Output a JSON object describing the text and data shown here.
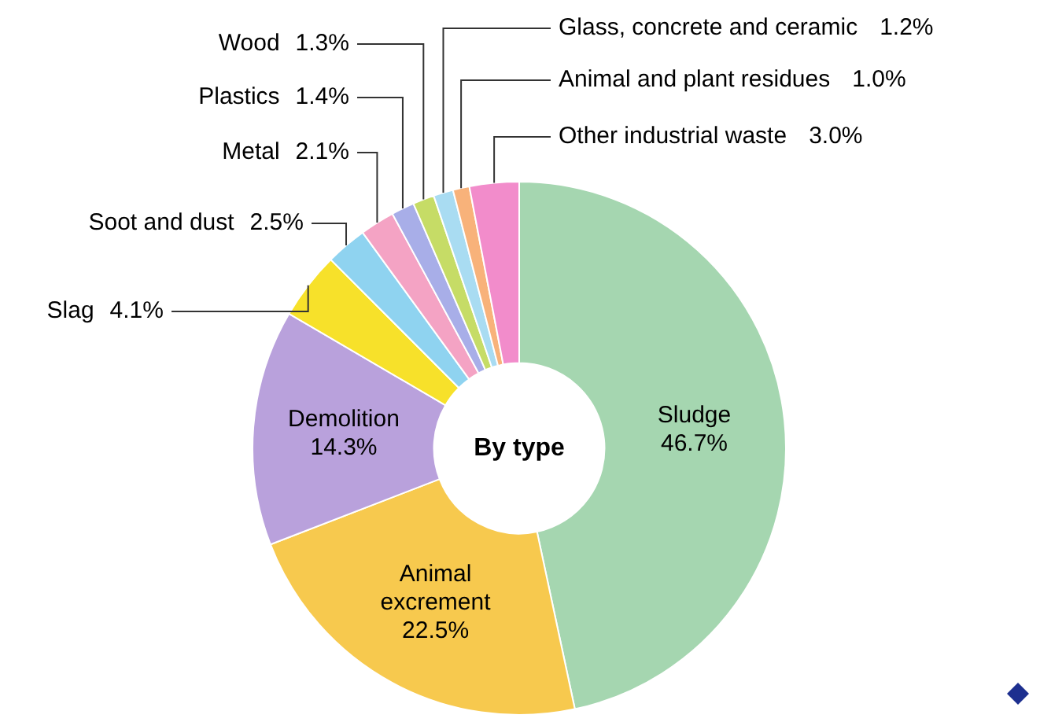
{
  "chart_data": {
    "type": "donut",
    "categories": [
      "Sludge",
      "Animal excrement",
      "Demolition",
      "Slag",
      "Soot and dust",
      "Metal",
      "Plastics",
      "Wood",
      "Glass, concrete and ceramic",
      "Animal and plant residues",
      "Other industrial waste"
    ],
    "values": [
      46.7,
      22.5,
      14.3,
      4.1,
      2.5,
      2.1,
      1.4,
      1.3,
      1.2,
      1.0,
      3.0
    ],
    "value_labels": [
      "46.7%",
      "22.5%",
      "14.3%",
      "4.1%",
      "2.5%",
      "2.1%",
      "1.4%",
      "1.3%",
      "1.2%",
      "1.0%",
      "3.0%"
    ],
    "colors": [
      "#a5d6b0",
      "#f7c94e",
      "#b9a1dc",
      "#f7e12a",
      "#8fd3f0",
      "#f4a3c4",
      "#a8aee8",
      "#c6dc66",
      "#a9dcf2",
      "#f8b27a",
      "#f28ccb"
    ],
    "annotations": [
      "By type"
    ],
    "legend": false
  }
}
